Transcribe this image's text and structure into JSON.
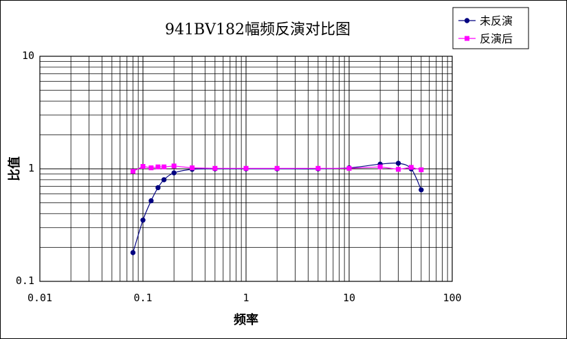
{
  "chart_data": {
    "type": "scatter",
    "title": "941BV182幅频反演对比图",
    "xlabel": "频率",
    "ylabel": "比值",
    "x_scale": "log",
    "y_scale": "log",
    "xlim": [
      0.01,
      100
    ],
    "ylim": [
      0.1,
      10
    ],
    "x_ticks": [
      "0.01",
      "0.1",
      "1",
      "10",
      "100"
    ],
    "y_ticks": [
      "10",
      "1",
      "0.1"
    ],
    "grid": true,
    "legend_position": "top-right",
    "series": [
      {
        "name": "未反演",
        "color": "#000080",
        "marker": "diamond",
        "line": "smooth",
        "x": [
          0.08,
          0.1,
          0.12,
          0.14,
          0.16,
          0.2,
          0.3,
          0.5,
          1,
          2,
          5,
          10,
          20,
          30,
          40,
          50
        ],
        "y": [
          0.18,
          0.35,
          0.52,
          0.68,
          0.8,
          0.92,
          0.99,
          1.0,
          1.0,
          1.0,
          1.0,
          1.02,
          1.1,
          1.12,
          1.0,
          0.65
        ]
      },
      {
        "name": "反演后",
        "color": "#ff00ff",
        "marker": "square",
        "line": "straight",
        "x": [
          0.08,
          0.1,
          0.12,
          0.14,
          0.16,
          0.2,
          0.3,
          0.5,
          1,
          2,
          5,
          10,
          20,
          30,
          40,
          50
        ],
        "y": [
          0.95,
          1.05,
          1.02,
          1.04,
          1.04,
          1.06,
          1.02,
          1.01,
          1.01,
          1.01,
          1.01,
          1.01,
          1.04,
          0.99,
          1.03,
          0.98
        ]
      }
    ]
  }
}
